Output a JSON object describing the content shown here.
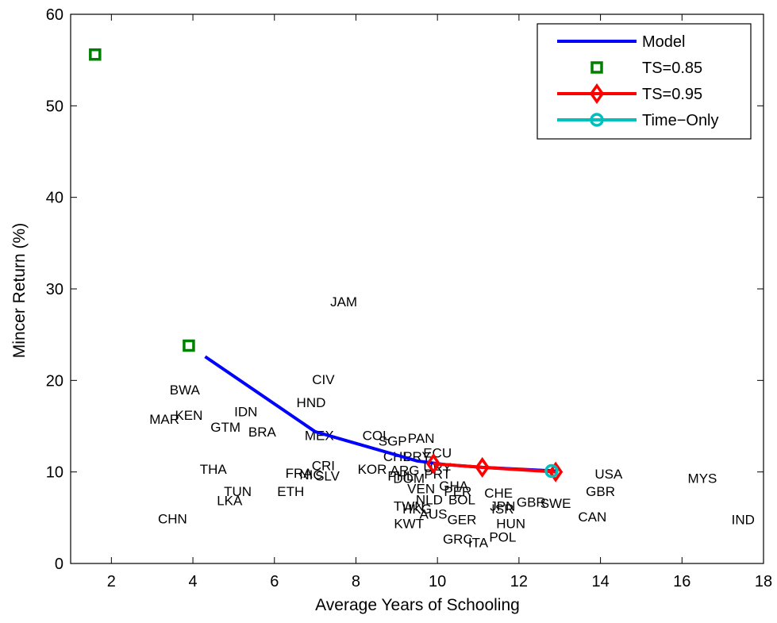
{
  "chart_data": {
    "type": "line",
    "title": "",
    "xlabel": "Average Years of Schooling",
    "ylabel": "Mincer Return (%)",
    "xlim": [
      1,
      18
    ],
    "ylim": [
      0,
      60
    ],
    "xticks": [
      2,
      4,
      6,
      8,
      10,
      12,
      14,
      16,
      18
    ],
    "yticks": [
      0,
      10,
      20,
      30,
      40,
      50,
      60
    ],
    "grid": false,
    "legend": "top-right",
    "series": [
      {
        "name": "Model",
        "color": "#0000ff",
        "marker": "none",
        "x": [
          4.3,
          7.0,
          9.5,
          10.2,
          11.1,
          12.9
        ],
        "y": [
          22.6,
          14.4,
          11.2,
          10.8,
          10.5,
          10.1
        ]
      },
      {
        "name": "TS=0.85",
        "color": "#008000",
        "marker": "square",
        "x": [
          1.6,
          3.9
        ],
        "y": [
          55.6,
          23.8
        ]
      },
      {
        "name": "TS=0.95",
        "color": "#ff0000",
        "marker": "diamond",
        "x": [
          9.9,
          11.1,
          12.9
        ],
        "y": [
          10.9,
          10.5,
          10.0
        ]
      },
      {
        "name": "Time−Only",
        "color": "#00bfbf",
        "marker": "circle",
        "x": [
          12.8
        ],
        "y": [
          10.1
        ]
      }
    ],
    "annotations": [
      {
        "text": "JAM",
        "x": 7.7,
        "y": 28.6
      },
      {
        "text": "CIV",
        "x": 7.2,
        "y": 20.1
      },
      {
        "text": "BWA",
        "x": 3.8,
        "y": 19.0
      },
      {
        "text": "HND",
        "x": 6.9,
        "y": 17.6
      },
      {
        "text": "IDN",
        "x": 5.3,
        "y": 16.6
      },
      {
        "text": "MAR",
        "x": 3.3,
        "y": 15.8
      },
      {
        "text": "KEN",
        "x": 3.9,
        "y": 16.2
      },
      {
        "text": "GTM",
        "x": 4.8,
        "y": 14.9
      },
      {
        "text": "BRA",
        "x": 5.7,
        "y": 14.4
      },
      {
        "text": "MEX",
        "x": 7.1,
        "y": 14.0
      },
      {
        "text": "COL",
        "x": 8.5,
        "y": 14.0
      },
      {
        "text": "PAN",
        "x": 9.6,
        "y": 13.7
      },
      {
        "text": "SGP",
        "x": 8.9,
        "y": 13.4
      },
      {
        "text": "ECU",
        "x": 10.0,
        "y": 12.1
      },
      {
        "text": "CHL",
        "x": 9.0,
        "y": 11.7
      },
      {
        "text": "PRY",
        "x": 9.5,
        "y": 11.7
      },
      {
        "text": "CRI",
        "x": 7.2,
        "y": 10.7
      },
      {
        "text": "KOR",
        "x": 8.4,
        "y": 10.3
      },
      {
        "text": "ARG",
        "x": 9.2,
        "y": 10.2
      },
      {
        "text": "URY",
        "x": 10.0,
        "y": 10.5
      },
      {
        "text": "THA",
        "x": 4.5,
        "y": 10.3
      },
      {
        "text": "FRA",
        "x": 6.6,
        "y": 9.9
      },
      {
        "text": "NIC",
        "x": 6.9,
        "y": 9.7
      },
      {
        "text": "SLV",
        "x": 7.3,
        "y": 9.6
      },
      {
        "text": "PHL",
        "x": 9.1,
        "y": 9.6
      },
      {
        "text": "DOM",
        "x": 9.3,
        "y": 9.3
      },
      {
        "text": "PRT",
        "x": 10.0,
        "y": 9.8
      },
      {
        "text": "TUN",
        "x": 5.1,
        "y": 7.9
      },
      {
        "text": "ETH",
        "x": 6.4,
        "y": 7.9
      },
      {
        "text": "VEN",
        "x": 9.6,
        "y": 8.2
      },
      {
        "text": "GHA",
        "x": 10.4,
        "y": 8.5
      },
      {
        "text": "PER",
        "x": 10.5,
        "y": 7.9
      },
      {
        "text": "CHE",
        "x": 11.5,
        "y": 7.7
      },
      {
        "text": "NLD",
        "x": 9.8,
        "y": 7.0
      },
      {
        "text": "BOL",
        "x": 10.6,
        "y": 7.0
      },
      {
        "text": "LKA",
        "x": 4.9,
        "y": 6.9
      },
      {
        "text": "JPN",
        "x": 11.6,
        "y": 6.3
      },
      {
        "text": "ISR",
        "x": 11.6,
        "y": 6.0
      },
      {
        "text": "GBR",
        "x": 12.3,
        "y": 6.7
      },
      {
        "text": "SWE",
        "x": 12.9,
        "y": 6.6
      },
      {
        "text": "GBR",
        "x": 14.0,
        "y": 7.9
      },
      {
        "text": "USA",
        "x": 14.2,
        "y": 9.8
      },
      {
        "text": "MYS",
        "x": 16.5,
        "y": 9.3
      },
      {
        "text": "TWN",
        "x": 9.3,
        "y": 6.3
      },
      {
        "text": "HKG",
        "x": 9.5,
        "y": 6.0
      },
      {
        "text": "AUS",
        "x": 9.9,
        "y": 5.4
      },
      {
        "text": "CAN",
        "x": 13.8,
        "y": 5.1
      },
      {
        "text": "CHN",
        "x": 3.5,
        "y": 4.9
      },
      {
        "text": "GER",
        "x": 10.6,
        "y": 4.8
      },
      {
        "text": "HUN",
        "x": 11.8,
        "y": 4.4
      },
      {
        "text": "KWT",
        "x": 9.3,
        "y": 4.4
      },
      {
        "text": "IND",
        "x": 17.5,
        "y": 4.8
      },
      {
        "text": "POL",
        "x": 11.6,
        "y": 2.9
      },
      {
        "text": "GRC",
        "x": 10.5,
        "y": 2.7
      },
      {
        "text": "ITA",
        "x": 11.0,
        "y": 2.3
      }
    ]
  }
}
